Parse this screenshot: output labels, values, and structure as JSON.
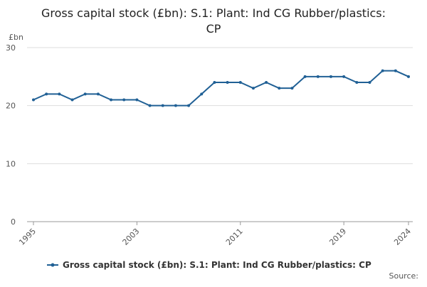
{
  "chart_data": {
    "type": "line",
    "title": "Gross capital stock (£bn): S.1: Plant: Ind CG Rubber/plastics: CP",
    "y_label": "£bn",
    "source": "Source:",
    "x": [
      1995,
      1996,
      1997,
      1998,
      1999,
      2000,
      2001,
      2002,
      2003,
      2004,
      2005,
      2006,
      2007,
      2008,
      2009,
      2010,
      2011,
      2012,
      2013,
      2014,
      2015,
      2016,
      2017,
      2018,
      2019,
      2020,
      2021,
      2022,
      2023,
      2024
    ],
    "series": [
      {
        "name": "Gross capital stock (£bn): S.1: Plant: Ind CG Rubber/plastics: CP",
        "color": "#206095",
        "values": [
          21,
          22,
          22,
          21,
          22,
          22,
          21,
          21,
          21,
          20,
          20,
          20,
          20,
          22,
          24,
          24,
          24,
          23,
          24,
          23,
          23,
          25,
          25,
          25,
          25,
          24,
          24,
          26,
          26,
          25
        ]
      }
    ],
    "xlim": [
      1995,
      2024
    ],
    "xticks": [
      1995,
      2003,
      2011,
      2019,
      2024
    ],
    "ylim": [
      0,
      30
    ],
    "yticks": [
      0,
      10,
      20,
      30
    ],
    "grid": true
  }
}
